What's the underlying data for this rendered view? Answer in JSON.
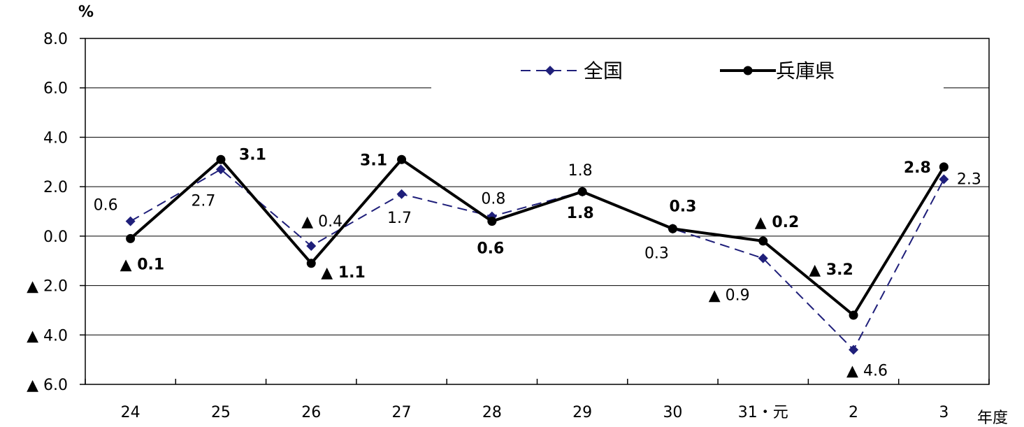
{
  "chart_data": {
    "type": "line",
    "ylabel": "%",
    "xlabel": "年度",
    "categories": [
      "24",
      "25",
      "26",
      "27",
      "28",
      "29",
      "30",
      "31・元",
      "2",
      "3"
    ],
    "ylim": [
      -6.0,
      8.0
    ],
    "yticks": [
      8.0,
      6.0,
      4.0,
      2.0,
      0.0,
      -2.0,
      -4.0,
      -6.0
    ],
    "ytick_labels": [
      "8.0",
      "6.0",
      "4.0",
      "2.0",
      "0.0",
      "▲ 2.0",
      "▲ 4.0",
      "▲ 6.0"
    ],
    "grid": true,
    "legend_position": "top-right",
    "series": [
      {
        "name": "全国",
        "color": "#1f1f7a",
        "style": "dashed",
        "marker": "diamond",
        "values": [
          0.6,
          2.7,
          -0.4,
          1.7,
          0.8,
          1.8,
          0.3,
          -0.9,
          -4.6,
          2.3
        ],
        "labels": [
          "0.6",
          "2.7",
          "▲ 0.4",
          "1.7",
          "0.8",
          "1.8",
          "0.3",
          "▲ 0.9",
          "▲ 4.6",
          "2.3"
        ]
      },
      {
        "name": "兵庫県",
        "color": "#000000",
        "style": "solid",
        "marker": "circle",
        "values": [
          -0.1,
          3.1,
          -1.1,
          3.1,
          0.6,
          1.8,
          0.3,
          -0.2,
          -3.2,
          2.8
        ],
        "labels": [
          "▲ 0.1",
          "3.1",
          "▲ 1.1",
          "3.1",
          "0.6",
          "1.8",
          "0.3",
          "▲ 0.2",
          "▲ 3.2",
          "2.8"
        ]
      }
    ]
  }
}
